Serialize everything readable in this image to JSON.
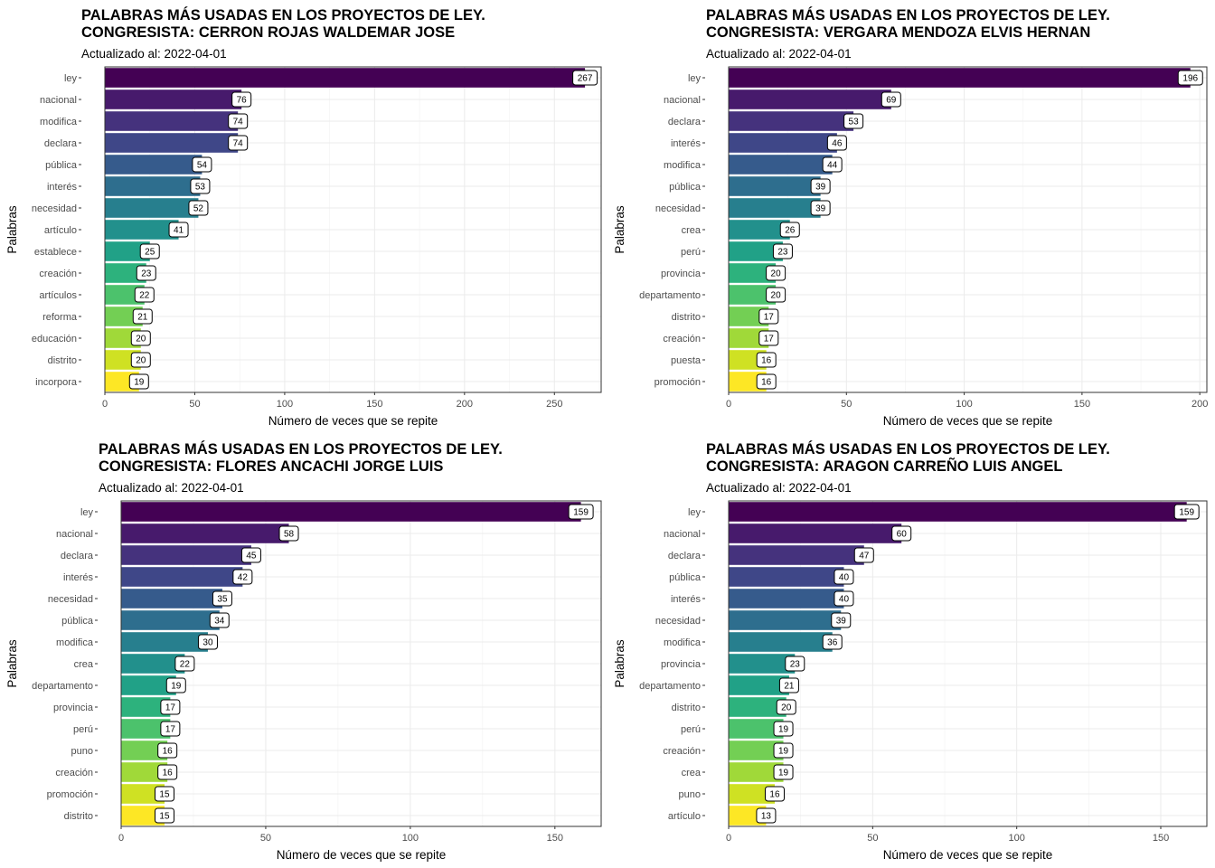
{
  "chart_data": [
    {
      "type": "bar",
      "orientation": "horizontal",
      "title": "PALABRAS MÁS USADAS EN LOS PROYECTOS DE LEY.",
      "title2": "CONGRESISTA: CERRON ROJAS WALDEMAR JOSE",
      "subtitle": "Actualizado al: 2022-04-01",
      "xlabel": "Número de veces que se repite",
      "ylabel": "Palabras",
      "xlim": [
        0,
        276
      ],
      "xticks": [
        0,
        50,
        100,
        150,
        200,
        250
      ],
      "grid": true,
      "categories": [
        "ley",
        "nacional",
        "modifica",
        "declara",
        "pública",
        "interés",
        "necesidad",
        "artículo",
        "establece",
        "creación",
        "artículos",
        "reforma",
        "educación",
        "distrito",
        "incorpora"
      ],
      "values": [
        267,
        76,
        74,
        74,
        54,
        53,
        52,
        41,
        25,
        23,
        22,
        21,
        20,
        20,
        19
      ]
    },
    {
      "type": "bar",
      "orientation": "horizontal",
      "title": "PALABRAS MÁS USADAS EN LOS PROYECTOS DE LEY.",
      "title2": "CONGRESISTA: VERGARA MENDOZA ELVIS HERNAN",
      "subtitle": "Actualizado al: 2022-04-01",
      "xlabel": "Número de veces que se repite",
      "ylabel": "Palabras",
      "xlim": [
        0,
        203
      ],
      "xticks": [
        0,
        50,
        100,
        150,
        200
      ],
      "grid": true,
      "categories": [
        "ley",
        "nacional",
        "declara",
        "interés",
        "modifica",
        "pública",
        "necesidad",
        "crea",
        "perú",
        "provincia",
        "departamento",
        "distrito",
        "creación",
        "puesta",
        "promoción"
      ],
      "values": [
        196,
        69,
        53,
        46,
        44,
        39,
        39,
        26,
        23,
        20,
        20,
        17,
        17,
        16,
        16
      ]
    },
    {
      "type": "bar",
      "orientation": "horizontal",
      "title": "PALABRAS MÁS USADAS EN LOS PROYECTOS DE LEY.",
      "title2": "CONGRESISTA: FLORES ANCACHI JORGE LUIS",
      "subtitle": "Actualizado al: 2022-04-01",
      "xlabel": "Número de veces que se repite",
      "ylabel": "Palabras",
      "xlim": [
        0,
        166
      ],
      "xticks": [
        0,
        50,
        100,
        150
      ],
      "grid": true,
      "categories": [
        "ley",
        "nacional",
        "declara",
        "interés",
        "necesidad",
        "pública",
        "modifica",
        "crea",
        "departamento",
        "provincia",
        "perú",
        "puno",
        "creación",
        "promoción",
        "distrito"
      ],
      "values": [
        159,
        58,
        45,
        42,
        35,
        34,
        30,
        22,
        19,
        17,
        17,
        16,
        16,
        15,
        15
      ]
    },
    {
      "type": "bar",
      "orientation": "horizontal",
      "title": "PALABRAS MÁS USADAS EN LOS PROYECTOS DE LEY.",
      "title2": "CONGRESISTA: ARAGON CARREÑO LUIS ANGEL",
      "subtitle": "Actualizado al: 2022-04-01",
      "xlabel": "Número de veces que se repite",
      "ylabel": "Palabras",
      "xlim": [
        0,
        166
      ],
      "xticks": [
        0,
        50,
        100,
        150
      ],
      "grid": true,
      "categories": [
        "ley",
        "nacional",
        "declara",
        "pública",
        "interés",
        "necesidad",
        "modifica",
        "provincia",
        "departamento",
        "distrito",
        "perú",
        "creación",
        "crea",
        "puno",
        "artículo"
      ],
      "values": [
        159,
        60,
        47,
        40,
        40,
        39,
        36,
        23,
        21,
        20,
        19,
        19,
        19,
        16,
        13
      ]
    }
  ],
  "colors": {
    "palette_top_to_bottom": [
      "#fde725",
      "#c2df23",
      "#86d549",
      "#52c569",
      "#2ab07f",
      "#1e9b8a",
      "#25858e",
      "#2d708e",
      "#38588c",
      "#433e85",
      "#482173",
      "#440154"
    ],
    "grid": "#ebebeb",
    "panel_border": "#333333"
  }
}
